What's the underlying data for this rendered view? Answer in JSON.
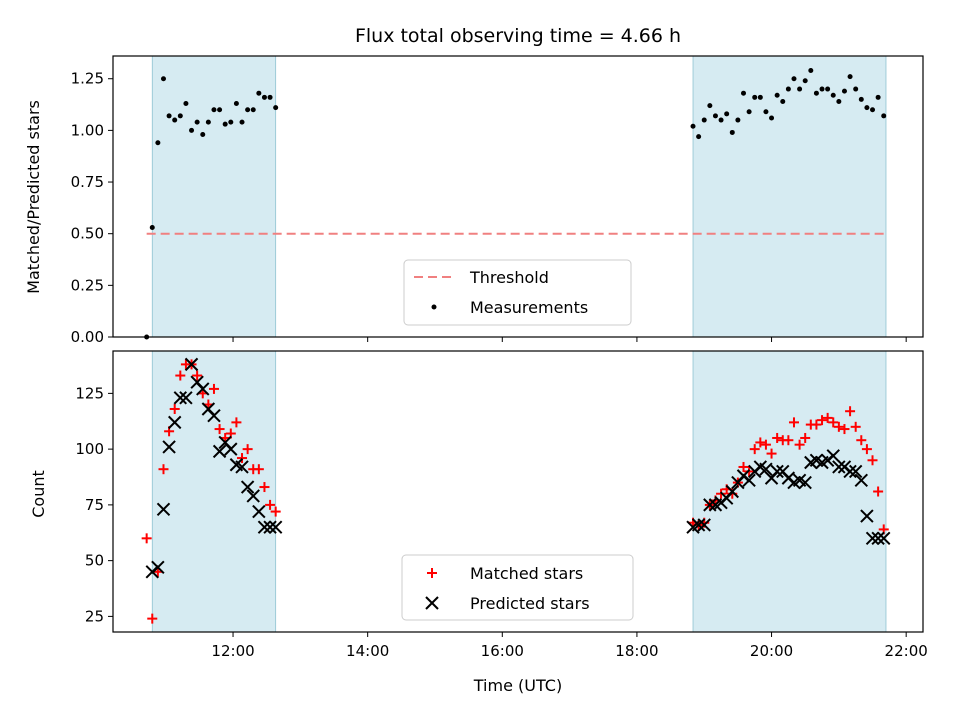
{
  "chart_data": [
    {
      "type": "scatter",
      "title": "Flux total observing time = 4.66 h",
      "xlabel": "",
      "ylabel": "Matched/Predicted stars",
      "ylim": [
        0,
        1.36
      ],
      "yticks": [
        "0.00",
        "0.25",
        "0.50",
        "0.75",
        "1.00",
        "1.25"
      ],
      "xlim": [
        "10:13",
        "22:15"
      ],
      "shaded_intervals": [
        [
          "10:48",
          "12:38"
        ],
        [
          "18:50",
          "21:42"
        ]
      ],
      "shade_color": "#add8e6",
      "legend": {
        "placement": "lower center"
      },
      "series": [
        {
          "name": "Threshold",
          "kind": "line",
          "style": "dashed",
          "color": "#f08080",
          "x": [
            "10:43",
            "21:42"
          ],
          "y": [
            0.5,
            0.5
          ]
        },
        {
          "name": "Measurements",
          "kind": "points",
          "color": "#000000",
          "x": [
            "10:43",
            "10:48",
            "10:53",
            "10:58",
            "11:03",
            "11:08",
            "11:13",
            "11:18",
            "11:23",
            "11:28",
            "11:33",
            "11:38",
            "11:43",
            "11:48",
            "11:53",
            "11:58",
            "12:03",
            "12:08",
            "12:13",
            "12:18",
            "12:23",
            "12:28",
            "12:33",
            "12:38",
            "18:50",
            "18:55",
            "19:00",
            "19:05",
            "19:10",
            "19:15",
            "19:20",
            "19:25",
            "19:30",
            "19:35",
            "19:40",
            "19:45",
            "19:50",
            "19:55",
            "20:00",
            "20:05",
            "20:10",
            "20:15",
            "20:20",
            "20:25",
            "20:30",
            "20:35",
            "20:40",
            "20:45",
            "20:50",
            "20:55",
            "21:00",
            "21:05",
            "21:10",
            "21:15",
            "21:20",
            "21:25",
            "21:30",
            "21:35",
            "21:40"
          ],
          "y": [
            0.0,
            0.53,
            0.94,
            1.25,
            1.07,
            1.05,
            1.07,
            1.13,
            1.0,
            1.04,
            0.98,
            1.04,
            1.1,
            1.1,
            1.03,
            1.04,
            1.13,
            1.04,
            1.1,
            1.1,
            1.18,
            1.16,
            1.16,
            1.11,
            1.02,
            0.97,
            1.05,
            1.12,
            1.07,
            1.05,
            1.08,
            0.99,
            1.05,
            1.18,
            1.09,
            1.16,
            1.16,
            1.09,
            1.06,
            1.17,
            1.14,
            1.2,
            1.25,
            1.2,
            1.24,
            1.29,
            1.18,
            1.2,
            1.2,
            1.17,
            1.14,
            1.19,
            1.26,
            1.2,
            1.15,
            1.11,
            1.1,
            1.16,
            1.07
          ]
        }
      ]
    },
    {
      "type": "scatter",
      "title": "",
      "xlabel": "Time (UTC)",
      "ylabel": "Count",
      "ylim": [
        18,
        144
      ],
      "yticks": [
        "25",
        "50",
        "75",
        "100",
        "125"
      ],
      "xlim": [
        "10:13",
        "22:15"
      ],
      "xticks": [
        "12:00",
        "14:00",
        "16:00",
        "18:00",
        "20:00",
        "22:00"
      ],
      "shaded_intervals": [
        [
          "10:48",
          "12:38"
        ],
        [
          "18:50",
          "21:42"
        ]
      ],
      "shade_color": "#add8e6",
      "legend": {
        "placement": "lower center"
      },
      "series": [
        {
          "name": "Matched stars",
          "marker": "+",
          "color": "#ff0000",
          "x": [
            "10:43",
            "10:48",
            "10:53",
            "10:58",
            "11:03",
            "11:08",
            "11:13",
            "11:18",
            "11:23",
            "11:28",
            "11:33",
            "11:38",
            "11:43",
            "11:48",
            "11:53",
            "11:58",
            "12:03",
            "12:08",
            "12:13",
            "12:18",
            "12:23",
            "12:28",
            "12:33",
            "12:38",
            "18:50",
            "18:55",
            "19:00",
            "19:05",
            "19:10",
            "19:15",
            "19:20",
            "19:25",
            "19:30",
            "19:35",
            "19:40",
            "19:45",
            "19:50",
            "19:55",
            "20:00",
            "20:05",
            "20:10",
            "20:15",
            "20:20",
            "20:25",
            "20:30",
            "20:35",
            "20:40",
            "20:45",
            "20:50",
            "20:55",
            "21:00",
            "21:05",
            "21:10",
            "21:15",
            "21:20",
            "21:25",
            "21:30",
            "21:35",
            "21:40"
          ],
          "y": [
            60,
            24,
            45,
            91,
            108,
            118,
            133,
            138,
            138,
            133,
            125,
            120,
            127,
            109,
            105,
            107,
            112,
            96,
            100,
            91,
            91,
            83,
            75,
            72,
            67,
            66,
            67,
            75,
            77,
            80,
            82,
            80,
            85,
            92,
            90,
            100,
            103,
            102,
            98,
            105,
            104,
            104,
            112,
            102,
            105,
            111,
            111,
            113,
            114,
            112,
            110,
            109,
            117,
            110,
            104,
            100,
            95,
            81,
            64
          ]
        },
        {
          "name": "Predicted stars",
          "marker": "x",
          "color": "#000000",
          "x": [
            "10:48",
            "10:53",
            "10:58",
            "11:03",
            "11:08",
            "11:13",
            "11:18",
            "11:23",
            "11:28",
            "11:33",
            "11:38",
            "11:43",
            "11:48",
            "11:53",
            "11:58",
            "12:03",
            "12:08",
            "12:13",
            "12:18",
            "12:23",
            "12:28",
            "12:33",
            "12:38",
            "18:50",
            "18:55",
            "19:00",
            "19:05",
            "19:10",
            "19:15",
            "19:20",
            "19:25",
            "19:30",
            "19:35",
            "19:40",
            "19:45",
            "19:50",
            "19:55",
            "20:00",
            "20:05",
            "20:10",
            "20:15",
            "20:20",
            "20:25",
            "20:30",
            "20:35",
            "20:40",
            "20:45",
            "20:50",
            "20:55",
            "21:00",
            "21:05",
            "21:10",
            "21:15",
            "21:20",
            "21:25",
            "21:30",
            "21:35",
            "21:40"
          ],
          "y": [
            45,
            47,
            73,
            101,
            112,
            123,
            123,
            138,
            130,
            127,
            118,
            115,
            99,
            103,
            100,
            93,
            92,
            83,
            79,
            72,
            65,
            65,
            65,
            65,
            66,
            66,
            75,
            75,
            76,
            78,
            81,
            85,
            88,
            86,
            90,
            92,
            91,
            87,
            90,
            90,
            87,
            85,
            86,
            85,
            94,
            95,
            94,
            95,
            97,
            92,
            92,
            90,
            90,
            86,
            70,
            60,
            60,
            60
          ]
        }
      ]
    }
  ]
}
